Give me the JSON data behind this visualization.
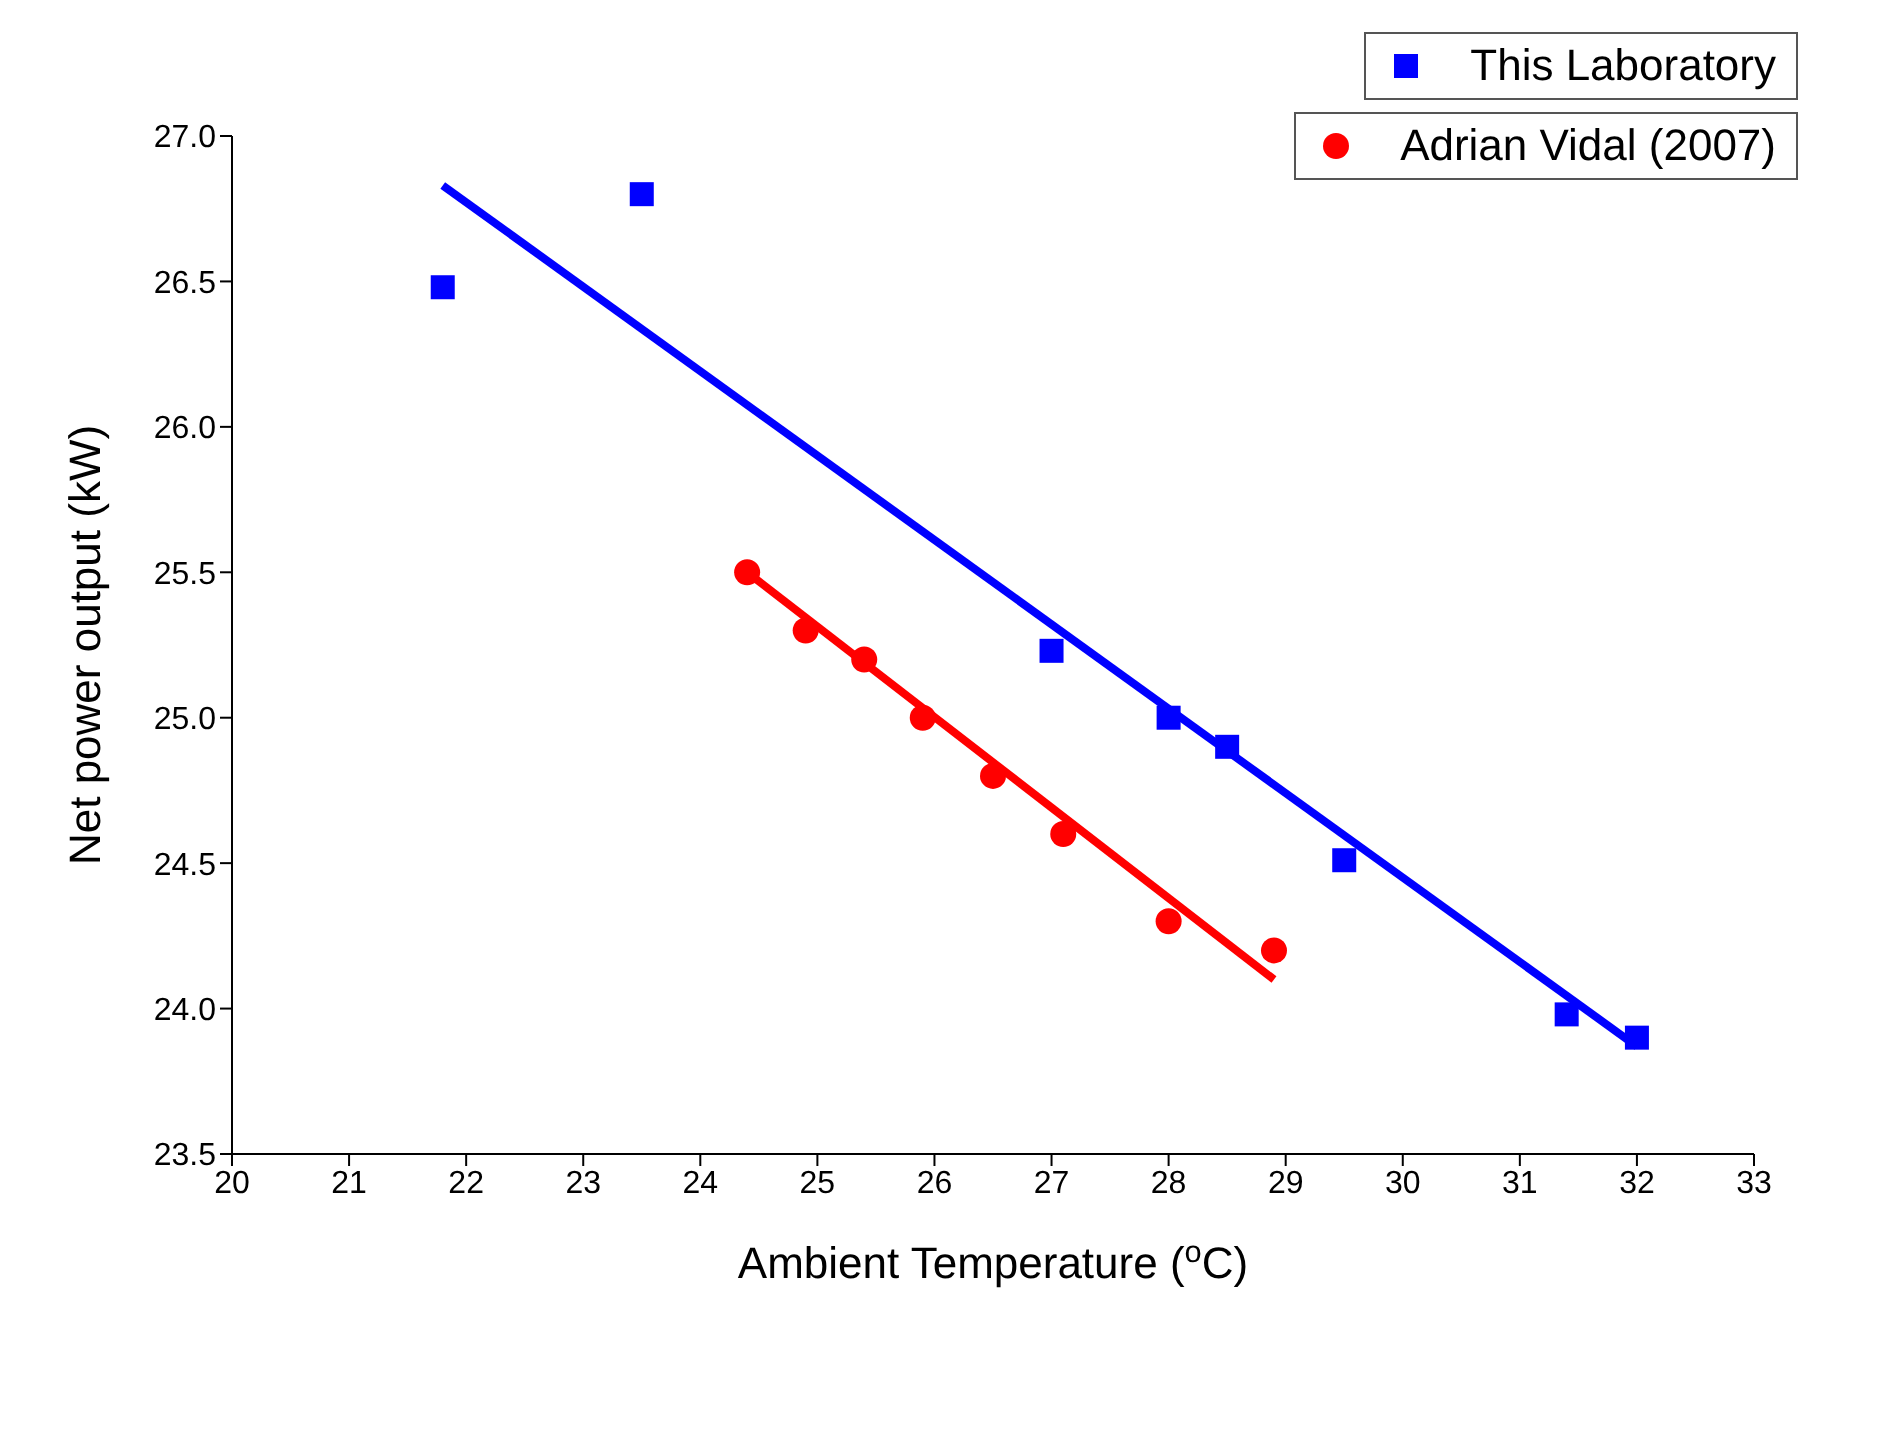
{
  "chart_data": {
    "type": "scatter",
    "xlabel": "Ambient Temperature ($^{o}$C)",
    "ylabel": "Net power output (kW)",
    "xlim": [
      20,
      33
    ],
    "ylim": [
      23.5,
      27.0
    ],
    "xticks": [
      20,
      21,
      22,
      23,
      24,
      25,
      26,
      27,
      28,
      29,
      30,
      31,
      32,
      33
    ],
    "yticks": [
      {
        "value": 23.5,
        "label": "23.5"
      },
      {
        "value": 24,
        "label": "24.0"
      },
      {
        "value": 24.5,
        "label": "24.5"
      },
      {
        "value": 25,
        "label": "25.0"
      },
      {
        "value": 25.5,
        "label": "25.5"
      },
      {
        "value": 26,
        "label": "26.0"
      },
      {
        "value": 26.5,
        "label": "26.5"
      },
      {
        "value": 27,
        "label": "27.0"
      }
    ],
    "grid": false,
    "legend": "top right",
    "series": [
      {
        "name": "This Laboratory",
        "marker": "square",
        "color": "#0000ff",
        "x": [
          21.8,
          23.5,
          27.0,
          28.0,
          28.5,
          29.5,
          31.4,
          32.0
        ],
        "values": [
          26.48,
          26.8,
          25.23,
          25.0,
          24.9,
          24.51,
          23.98,
          23.9
        ]
      },
      {
        "name": "Adrian Vidal (2007)",
        "marker": "circle",
        "color": "#ff0000",
        "x": [
          24.4,
          24.9,
          25.4,
          25.9,
          26.5,
          27.1,
          28.0,
          28.9
        ],
        "values": [
          25.5,
          25.3,
          25.2,
          25.0,
          24.8,
          24.6,
          24.3,
          24.2
        ]
      },
      {
        "type": "line",
        "marker": "none",
        "color": "#0000ff",
        "x": [
          21.8,
          32.0
        ],
        "values": [
          26.83,
          23.87
        ]
      },
      {
        "type": "line",
        "marker": "none",
        "color": "#ff0000",
        "x": [
          24.4,
          28.9
        ],
        "values": [
          25.5,
          24.1
        ]
      }
    ]
  }
}
